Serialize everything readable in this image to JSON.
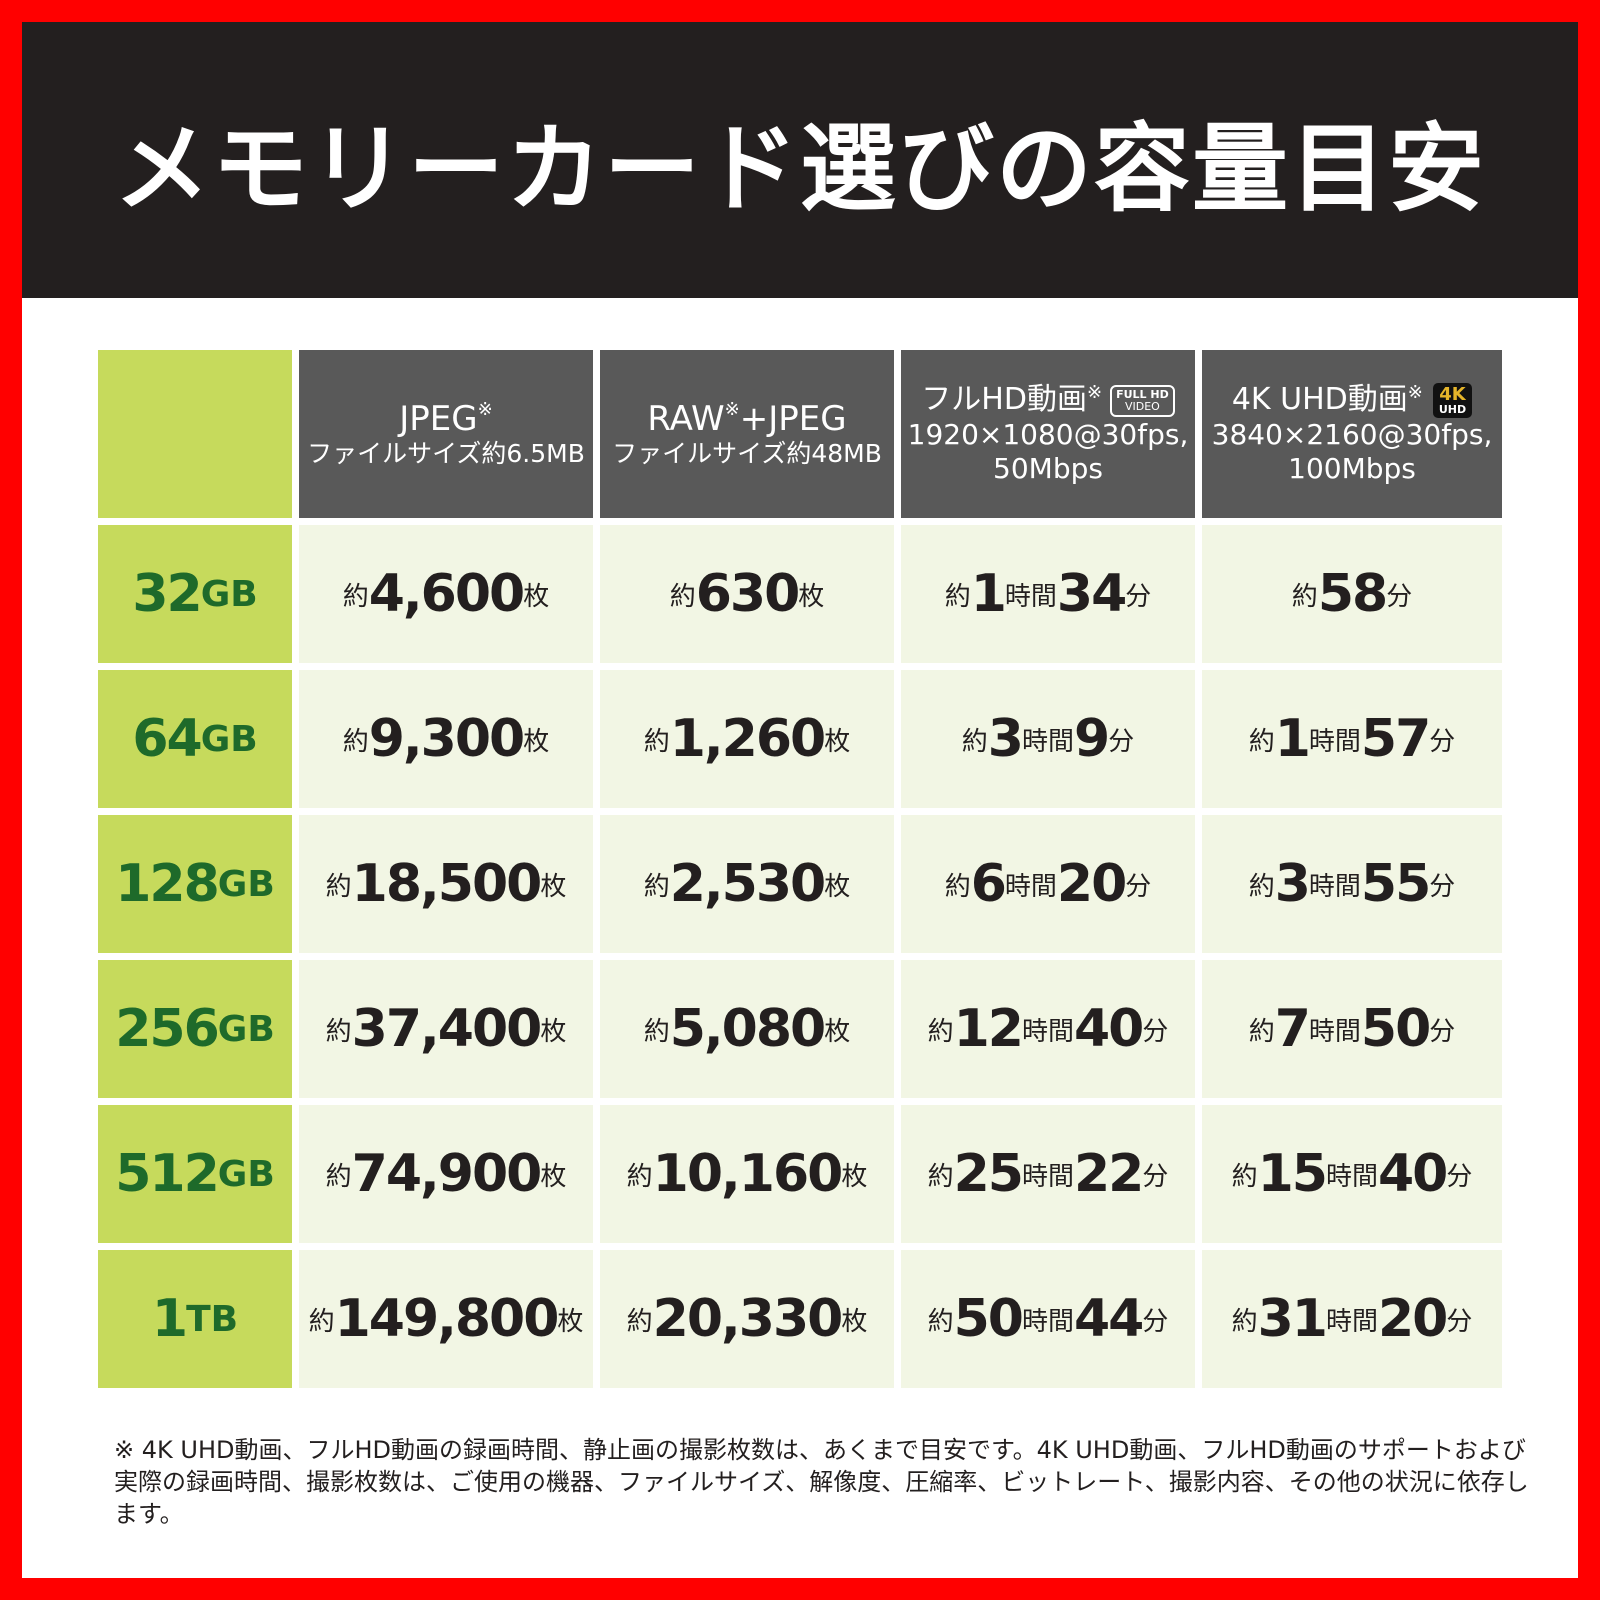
{
  "title": "メモリーカード選びの容量目安",
  "headers": [
    {
      "title": "JPEG",
      "mark": "※",
      "sub": "ファイルサイズ約6.5MB"
    },
    {
      "title": "RAW",
      "mark": "※",
      "title2": "+JPEG",
      "sub": "ファイルサイズ約48MB"
    },
    {
      "title": "フルHD動画",
      "mark": "※",
      "badge": [
        "FULL HD",
        "VIDEO"
      ],
      "spec1": "1920×1080@30fps,",
      "spec2": "50Mbps"
    },
    {
      "title": "4K UHD動画",
      "mark": "※",
      "badge": [
        "4K",
        "UHD"
      ],
      "spec1": "3840×2160@30fps,",
      "spec2": "100Mbps"
    }
  ],
  "rows": [
    {
      "capacity": [
        "32",
        "GB"
      ],
      "cells": [
        [
          "約",
          "4,600",
          "枚"
        ],
        [
          "約",
          "630",
          "枚"
        ],
        [
          "約",
          "1",
          "時間",
          "34",
          "分"
        ],
        [
          "約",
          "58",
          "分"
        ]
      ]
    },
    {
      "capacity": [
        "64",
        "GB"
      ],
      "cells": [
        [
          "約",
          "9,300",
          "枚"
        ],
        [
          "約",
          "1,260",
          "枚"
        ],
        [
          "約",
          "3",
          "時間",
          "9",
          "分"
        ],
        [
          "約",
          "1",
          "時間",
          "57",
          "分"
        ]
      ]
    },
    {
      "capacity": [
        "128",
        "GB"
      ],
      "cells": [
        [
          "約",
          "18,500",
          "枚"
        ],
        [
          "約",
          "2,530",
          "枚"
        ],
        [
          "約",
          "6",
          "時間",
          "20",
          "分"
        ],
        [
          "約",
          "3",
          "時間",
          "55",
          "分"
        ]
      ]
    },
    {
      "capacity": [
        "256",
        "GB"
      ],
      "cells": [
        [
          "約",
          "37,400",
          "枚"
        ],
        [
          "約",
          "5,080",
          "枚"
        ],
        [
          "約",
          "12",
          "時間",
          "40",
          "分"
        ],
        [
          "約",
          "7",
          "時間",
          "50",
          "分"
        ]
      ]
    },
    {
      "capacity": [
        "512",
        "GB"
      ],
      "cells": [
        [
          "約",
          "74,900",
          "枚"
        ],
        [
          "約",
          "10,160",
          "枚"
        ],
        [
          "約",
          "25",
          "時間",
          "22",
          "分"
        ],
        [
          "約",
          "15",
          "時間",
          "40",
          "分"
        ]
      ]
    },
    {
      "capacity": [
        "1",
        "TB"
      ],
      "cells": [
        [
          "約",
          "149,800",
          "枚"
        ],
        [
          "約",
          "20,330",
          "枚"
        ],
        [
          "約",
          "50",
          "時間",
          "44",
          "分"
        ],
        [
          "約",
          "31",
          "時間",
          "20",
          "分"
        ]
      ]
    }
  ],
  "footnote": "※ 4K UHD動画、フルHD動画の録画時間、静止画の撮影枚数は、あくまで目安です。4K UHD動画、フルHD動画のサポートおよび実際の録画時間、撮影枚数は、ご使用の機器、ファイルサイズ、解像度、圧縮率、ビットレート、撮影内容、その他の状況に依存します。",
  "colors": {
    "border": "#ff0000",
    "banner": "#231f1f",
    "header": "#595959",
    "label_bg": "#c6da5c",
    "label_text": "#1e6a2a",
    "cell_bg": "#f2f6e4"
  }
}
